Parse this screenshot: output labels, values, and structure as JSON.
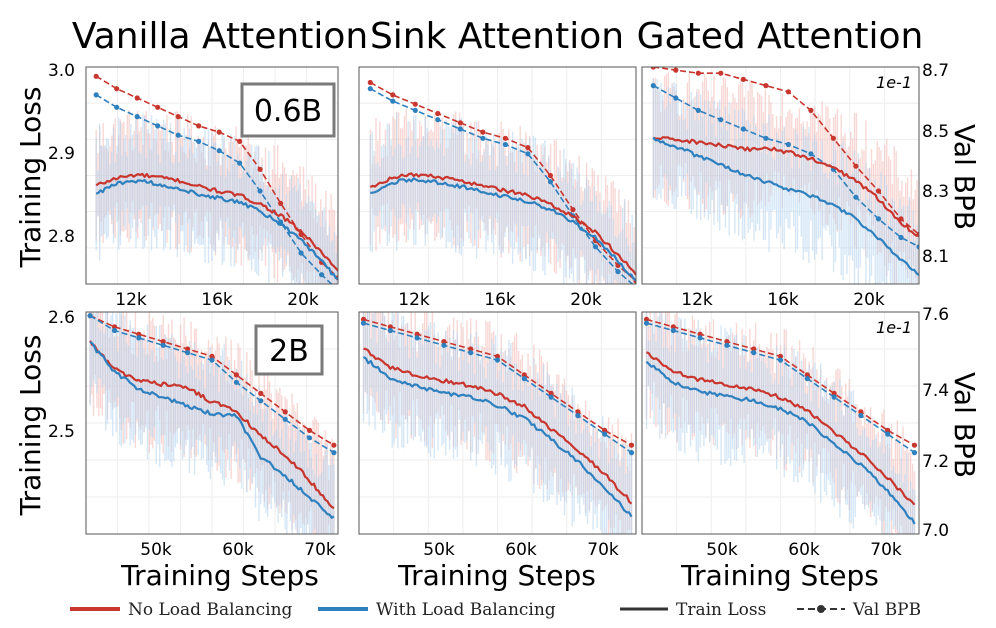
{
  "colors": {
    "no_lb": "#c8362e",
    "with_lb": "#2f80bf",
    "train_legend": "#333333",
    "band_no": "#f0b8b4",
    "band_with": "#b3d3ee"
  },
  "column_titles": [
    "Vanilla Attention",
    "Sink Attention",
    "Gated Attention"
  ],
  "rows": [
    {
      "model": "0.6B",
      "left_ylabel": "Training Loss",
      "right_ylabel": "Val BPB",
      "sci": "1e-1",
      "left_ticks": [
        "3.0",
        "2.9",
        "2.8"
      ],
      "right_ticks": [
        "8.7",
        "8.5",
        "8.3",
        "8.1"
      ],
      "x_ticks": [
        "12k",
        "16k",
        "20k"
      ]
    },
    {
      "model": "2B",
      "left_ylabel": "Training Loss",
      "right_ylabel": "Val BPB",
      "sci": "1e-1",
      "left_ticks": [
        "2.6",
        "2.5"
      ],
      "right_ticks": [
        "7.6",
        "7.4",
        "7.2",
        "7.0"
      ],
      "x_ticks": [
        "50k",
        "60k",
        "70k"
      ]
    }
  ],
  "x_axis_label": "Training Steps",
  "legend": {
    "no_lb": "No Load Balancing",
    "with_lb": "With Load Balancing",
    "train": "Train Loss",
    "val": "Val BPB"
  },
  "chart_data": [
    {
      "type": "line",
      "row": 0,
      "column": "Vanilla Attention",
      "xlabel": "Training Steps",
      "ylabel": "Training Loss",
      "y2label": "Val BPB",
      "xlim": [
        9500,
        21800
      ],
      "ylim": [
        2.74,
        3.0
      ],
      "y2lim": [
        8.0,
        8.7
      ],
      "y2_scale": "1e-1",
      "series": [
        {
          "name": "No Load Balancing",
          "kind": "train",
          "x": [
            10000,
            11000,
            12000,
            13000,
            14000,
            15000,
            16000,
            17000,
            18000,
            19000,
            20000,
            21000,
            21800
          ],
          "y": [
            2.858,
            2.867,
            2.871,
            2.868,
            2.864,
            2.857,
            2.851,
            2.846,
            2.836,
            2.822,
            2.803,
            2.778,
            2.755
          ]
        },
        {
          "name": "With Load Balancing",
          "kind": "train",
          "x": [
            10000,
            11000,
            12000,
            13000,
            14000,
            15000,
            16000,
            17000,
            18000,
            19000,
            20000,
            21000,
            21800
          ],
          "y": [
            2.848,
            2.86,
            2.864,
            2.86,
            2.855,
            2.848,
            2.843,
            2.838,
            2.827,
            2.812,
            2.792,
            2.768,
            2.744
          ]
        },
        {
          "name": "No Load Balancing",
          "kind": "val",
          "x": [
            10000,
            11000,
            12000,
            13000,
            14000,
            15000,
            16000,
            17000,
            18000,
            19000,
            20000,
            21000,
            21800
          ],
          "y": [
            8.67,
            8.63,
            8.6,
            8.57,
            8.54,
            8.51,
            8.49,
            8.46,
            8.37,
            8.26,
            8.16,
            8.07,
            8.02
          ]
        },
        {
          "name": "With Load Balancing",
          "kind": "val",
          "x": [
            10000,
            11000,
            12000,
            13000,
            14000,
            15000,
            16000,
            17000,
            18000,
            19000,
            20000,
            21000,
            21800
          ],
          "y": [
            8.61,
            8.57,
            8.54,
            8.51,
            8.48,
            8.46,
            8.43,
            8.39,
            8.3,
            8.2,
            8.1,
            8.03,
            7.98
          ]
        }
      ]
    },
    {
      "type": "line",
      "row": 0,
      "column": "Sink Attention",
      "xlabel": "Training Steps",
      "ylabel": "Training Loss",
      "y2label": "Val BPB",
      "xlim": [
        9500,
        21800
      ],
      "ylim": [
        2.74,
        3.0
      ],
      "y2lim": [
        8.0,
        8.7
      ],
      "y2_scale": "1e-1",
      "series": [
        {
          "name": "No Load Balancing",
          "kind": "train",
          "x": [
            10000,
            11000,
            12000,
            13000,
            14000,
            15000,
            16000,
            17000,
            18000,
            19000,
            20000,
            21000,
            21800
          ],
          "y": [
            2.856,
            2.868,
            2.871,
            2.868,
            2.864,
            2.858,
            2.852,
            2.846,
            2.836,
            2.821,
            2.802,
            2.775,
            2.752
          ]
        },
        {
          "name": "With Load Balancing",
          "kind": "train",
          "x": [
            10000,
            11000,
            12000,
            13000,
            14000,
            15000,
            16000,
            17000,
            18000,
            19000,
            20000,
            21000,
            21800
          ],
          "y": [
            2.849,
            2.862,
            2.865,
            2.862,
            2.857,
            2.851,
            2.845,
            2.839,
            2.829,
            2.814,
            2.795,
            2.768,
            2.744
          ]
        },
        {
          "name": "No Load Balancing",
          "kind": "val",
          "x": [
            10000,
            11000,
            12000,
            13000,
            14000,
            15000,
            16000,
            17000,
            18000,
            19000,
            20000,
            21000,
            21800
          ],
          "y": [
            8.65,
            8.61,
            8.58,
            8.55,
            8.52,
            8.49,
            8.47,
            8.44,
            8.35,
            8.24,
            8.14,
            8.06,
            8.01
          ]
        },
        {
          "name": "With Load Balancing",
          "kind": "val",
          "x": [
            10000,
            11000,
            12000,
            13000,
            14000,
            15000,
            16000,
            17000,
            18000,
            19000,
            20000,
            21000,
            21800
          ],
          "y": [
            8.63,
            8.59,
            8.56,
            8.53,
            8.5,
            8.47,
            8.45,
            8.42,
            8.33,
            8.22,
            8.12,
            8.04,
            7.99
          ]
        }
      ]
    },
    {
      "type": "line",
      "row": 0,
      "column": "Gated Attention",
      "xlabel": "Training Steps",
      "ylabel": "Training Loss",
      "y2label": "Val BPB",
      "xlim": [
        9500,
        21800
      ],
      "ylim": [
        2.74,
        3.0
      ],
      "y2lim": [
        8.0,
        8.7
      ],
      "y2_scale": "1e-1",
      "series": [
        {
          "name": "No Load Balancing",
          "kind": "train",
          "x": [
            10000,
            11000,
            12000,
            13000,
            14000,
            15000,
            16000,
            17000,
            18000,
            19000,
            20000,
            21000,
            21800
          ],
          "y": [
            2.915,
            2.913,
            2.91,
            2.906,
            2.901,
            2.903,
            2.898,
            2.89,
            2.879,
            2.864,
            2.842,
            2.814,
            2.796
          ]
        },
        {
          "name": "With Load Balancing",
          "kind": "train",
          "x": [
            10000,
            11000,
            12000,
            13000,
            14000,
            15000,
            16000,
            17000,
            18000,
            19000,
            20000,
            21000,
            21800
          ],
          "y": [
            2.915,
            2.905,
            2.893,
            2.882,
            2.871,
            2.862,
            2.854,
            2.846,
            2.835,
            2.818,
            2.795,
            2.77,
            2.752
          ]
        },
        {
          "name": "No Load Balancing",
          "kind": "val",
          "x": [
            10000,
            11000,
            12000,
            13000,
            14000,
            15000,
            16000,
            17000,
            18000,
            19000,
            20000,
            21000,
            21800
          ],
          "y": [
            8.7,
            8.69,
            8.68,
            8.68,
            8.66,
            8.64,
            8.62,
            8.56,
            8.47,
            8.38,
            8.3,
            8.21,
            8.16
          ]
        },
        {
          "name": "With Load Balancing",
          "kind": "val",
          "x": [
            10000,
            11000,
            12000,
            13000,
            14000,
            15000,
            16000,
            17000,
            18000,
            19000,
            20000,
            21000,
            21800
          ],
          "y": [
            8.64,
            8.6,
            8.56,
            8.53,
            8.5,
            8.47,
            8.45,
            8.42,
            8.37,
            8.28,
            8.21,
            8.15,
            8.12
          ]
        }
      ]
    },
    {
      "type": "line",
      "row": 1,
      "column": "Vanilla Attention",
      "xlabel": "Training Steps",
      "ylabel": "Training Loss",
      "y2label": "Val BPB",
      "xlim": [
        41500,
        72500
      ],
      "ylim": [
        2.41,
        2.6
      ],
      "y2lim": [
        7.0,
        7.6
      ],
      "y2_scale": "1e-1",
      "series": [
        {
          "name": "No Load Balancing",
          "kind": "train",
          "x": [
            42000,
            45000,
            48000,
            51000,
            54000,
            57000,
            60000,
            63000,
            66000,
            69000,
            72000
          ],
          "y": [
            2.575,
            2.551,
            2.541,
            2.538,
            2.535,
            2.523,
            2.515,
            2.494,
            2.478,
            2.456,
            2.432
          ]
        },
        {
          "name": "With Load Balancing",
          "kind": "train",
          "x": [
            42000,
            45000,
            48000,
            51000,
            54000,
            57000,
            60000,
            63000,
            66000,
            69000,
            72000
          ],
          "y": [
            2.574,
            2.549,
            2.534,
            2.527,
            2.519,
            2.513,
            2.511,
            2.476,
            2.46,
            2.441,
            2.424
          ]
        },
        {
          "name": "No Load Balancing",
          "kind": "val",
          "x": [
            42000,
            45000,
            48000,
            51000,
            54000,
            57000,
            60000,
            63000,
            66000,
            69000,
            72000
          ],
          "y": [
            7.59,
            7.56,
            7.54,
            7.52,
            7.5,
            7.48,
            7.43,
            7.38,
            7.33,
            7.28,
            7.24
          ]
        },
        {
          "name": "With Load Balancing",
          "kind": "val",
          "x": [
            42000,
            45000,
            48000,
            51000,
            54000,
            57000,
            60000,
            63000,
            66000,
            69000,
            72000
          ],
          "y": [
            7.59,
            7.55,
            7.53,
            7.51,
            7.49,
            7.47,
            7.41,
            7.36,
            7.31,
            7.26,
            7.22
          ]
        }
      ]
    },
    {
      "type": "line",
      "row": 1,
      "column": "Sink Attention",
      "xlabel": "Training Steps",
      "ylabel": "Training Loss",
      "y2label": "Val BPB",
      "xlim": [
        41500,
        72500
      ],
      "ylim": [
        2.41,
        2.6
      ],
      "y2lim": [
        7.0,
        7.6
      ],
      "y2_scale": "1e-1",
      "series": [
        {
          "name": "No Load Balancing",
          "kind": "train",
          "x": [
            42000,
            45000,
            48000,
            51000,
            54000,
            57000,
            60000,
            63000,
            66000,
            69000,
            72000
          ],
          "y": [
            2.568,
            2.553,
            2.546,
            2.541,
            2.537,
            2.53,
            2.519,
            2.5,
            2.482,
            2.461,
            2.437
          ]
        },
        {
          "name": "With Load Balancing",
          "kind": "train",
          "x": [
            42000,
            45000,
            48000,
            51000,
            54000,
            57000,
            60000,
            63000,
            66000,
            69000,
            72000
          ],
          "y": [
            2.561,
            2.544,
            2.536,
            2.531,
            2.527,
            2.52,
            2.509,
            2.491,
            2.472,
            2.45,
            2.425
          ]
        },
        {
          "name": "No Load Balancing",
          "kind": "val",
          "x": [
            42000,
            45000,
            48000,
            51000,
            54000,
            57000,
            60000,
            63000,
            66000,
            69000,
            72000
          ],
          "y": [
            7.58,
            7.56,
            7.54,
            7.52,
            7.5,
            7.48,
            7.43,
            7.38,
            7.33,
            7.28,
            7.24
          ]
        },
        {
          "name": "With Load Balancing",
          "kind": "val",
          "x": [
            42000,
            45000,
            48000,
            51000,
            54000,
            57000,
            60000,
            63000,
            66000,
            69000,
            72000
          ],
          "y": [
            7.57,
            7.55,
            7.53,
            7.51,
            7.49,
            7.47,
            7.42,
            7.37,
            7.32,
            7.27,
            7.22
          ]
        }
      ]
    },
    {
      "type": "line",
      "row": 1,
      "column": "Gated Attention",
      "xlabel": "Training Steps",
      "ylabel": "Training Loss",
      "y2label": "Val BPB",
      "xlim": [
        41500,
        72500
      ],
      "ylim": [
        2.41,
        2.6
      ],
      "y2lim": [
        7.0,
        7.6
      ],
      "y2_scale": "1e-1",
      "series": [
        {
          "name": "No Load Balancing",
          "kind": "train",
          "x": [
            42000,
            45000,
            48000,
            51000,
            54000,
            57000,
            60000,
            63000,
            66000,
            69000,
            72000
          ],
          "y": [
            2.565,
            2.549,
            2.542,
            2.538,
            2.534,
            2.527,
            2.516,
            2.497,
            2.479,
            2.458,
            2.434
          ]
        },
        {
          "name": "With Load Balancing",
          "kind": "train",
          "x": [
            42000,
            45000,
            48000,
            51000,
            54000,
            57000,
            60000,
            63000,
            66000,
            69000,
            72000
          ],
          "y": [
            2.557,
            2.54,
            2.532,
            2.528,
            2.524,
            2.517,
            2.506,
            2.487,
            2.469,
            2.447,
            2.42
          ]
        },
        {
          "name": "No Load Balancing",
          "kind": "val",
          "x": [
            42000,
            45000,
            48000,
            51000,
            54000,
            57000,
            60000,
            63000,
            66000,
            69000,
            72000
          ],
          "y": [
            7.58,
            7.56,
            7.54,
            7.52,
            7.5,
            7.48,
            7.43,
            7.38,
            7.33,
            7.28,
            7.24
          ]
        },
        {
          "name": "With Load Balancing",
          "kind": "val",
          "x": [
            42000,
            45000,
            48000,
            51000,
            54000,
            57000,
            60000,
            63000,
            66000,
            69000,
            72000
          ],
          "y": [
            7.57,
            7.55,
            7.53,
            7.51,
            7.49,
            7.47,
            7.42,
            7.37,
            7.32,
            7.27,
            7.22
          ]
        }
      ]
    }
  ]
}
